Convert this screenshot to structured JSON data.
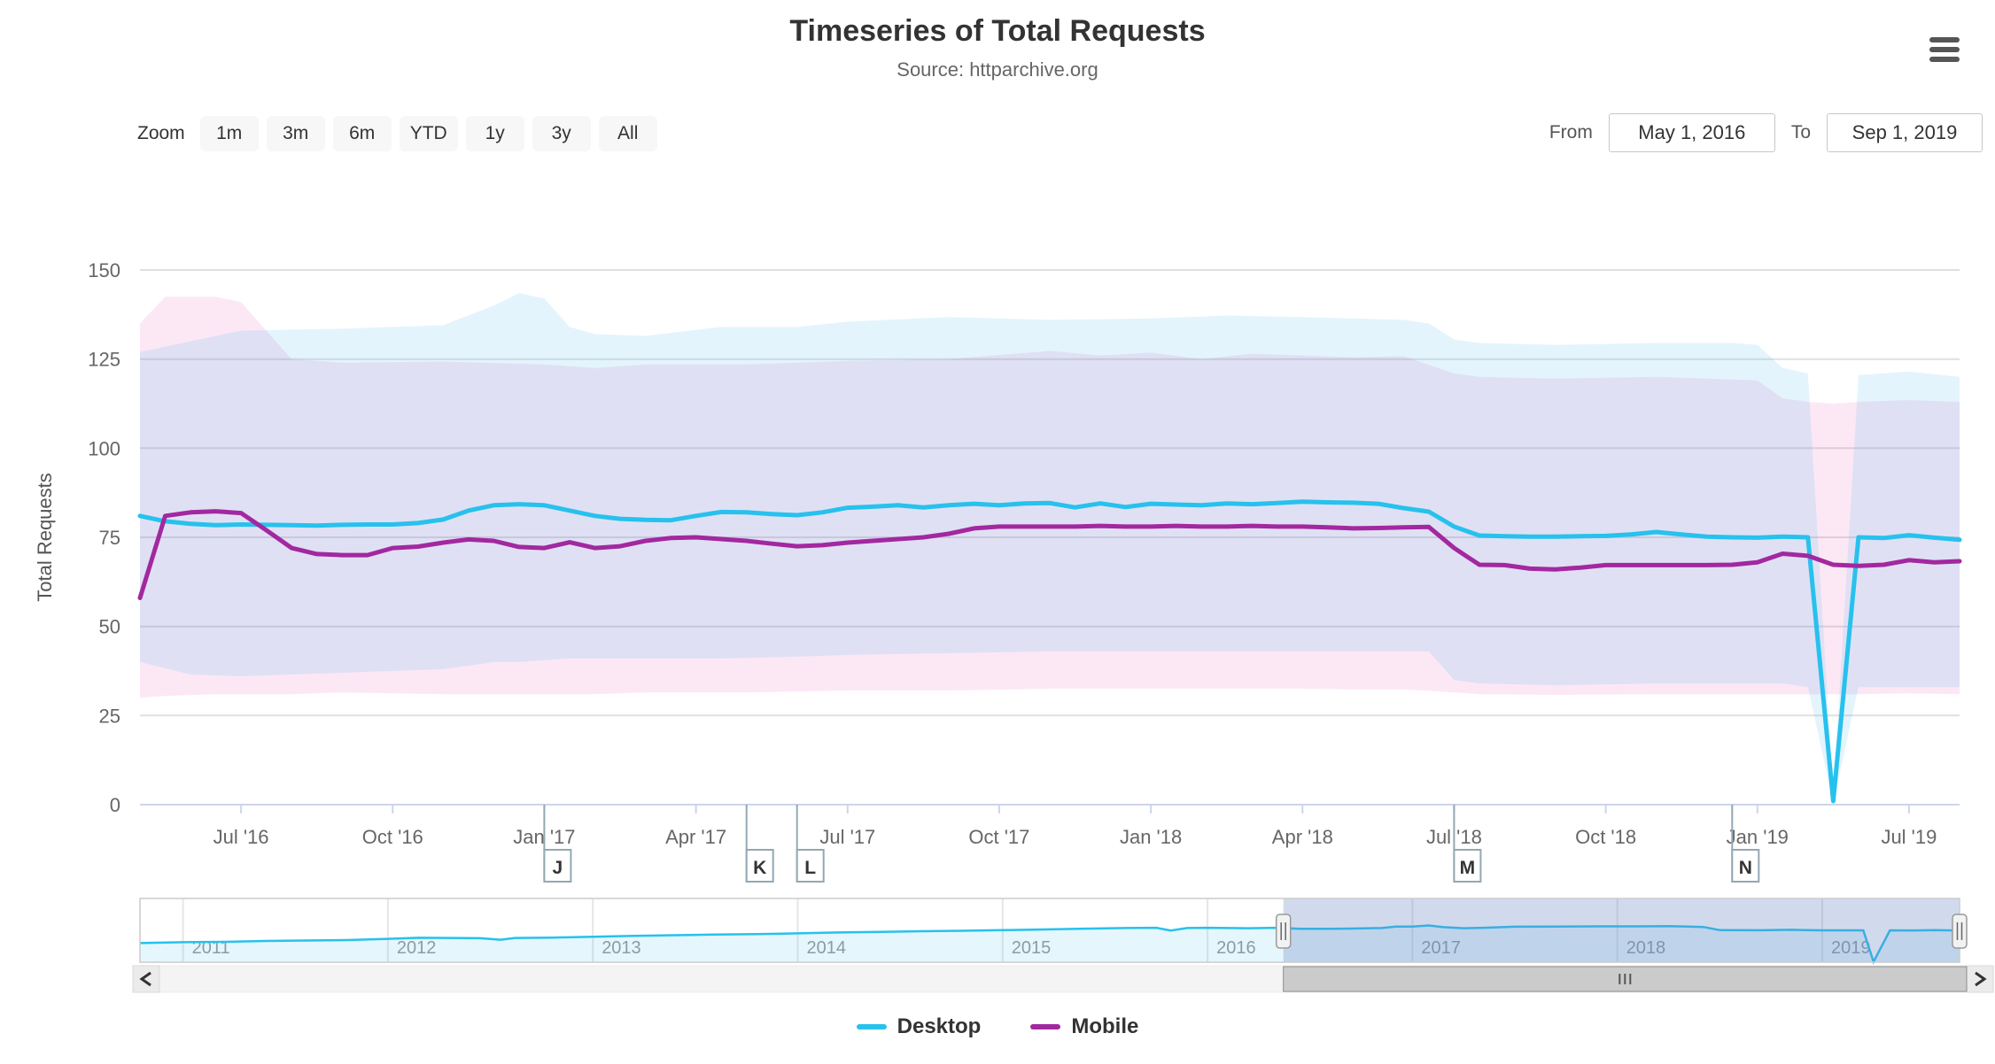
{
  "header": {
    "title": "Timeseries of Total Requests",
    "subtitle": "Source: httparchive.org",
    "menu_icon": "hamburger-icon"
  },
  "toolbar": {
    "zoom_label": "Zoom",
    "buttons": [
      "1m",
      "3m",
      "6m",
      "YTD",
      "1y",
      "3y",
      "All"
    ]
  },
  "range": {
    "from_label": "From",
    "from_value": "May 1, 2016",
    "to_label": "To",
    "to_value": "Sep 1, 2019"
  },
  "legend": [
    {
      "label": "Desktop",
      "color": "#27c1ed"
    },
    {
      "label": "Mobile",
      "color": "#a228a0"
    }
  ],
  "colors": {
    "desktop_line": "#27c1ed",
    "mobile_line": "#a228a0",
    "desktop_band": "rgba(60,180,240,0.14)",
    "mobile_band": "rgba(228,50,160,0.11)",
    "gridline": "#e0e0e0",
    "axis_line": "#ccd6eb",
    "flag_border": "#93a8b3",
    "navigator_mask": "rgba(102,133,194,0.3)"
  },
  "chart_data": {
    "type": "line",
    "title": "Timeseries of Total Requests",
    "xlabel": "",
    "ylabel": "Total Requests",
    "ylim": [
      0,
      150
    ],
    "grid": true,
    "legend_position": "bottom",
    "yticks": [
      0,
      25,
      50,
      75,
      100,
      125,
      150
    ],
    "xticks": [
      [
        "2016-07-01",
        "Jul '16"
      ],
      [
        "2016-10-01",
        "Oct '16"
      ],
      [
        "2017-01-01",
        "Jan '17"
      ],
      [
        "2017-04-01",
        "Apr '17"
      ],
      [
        "2017-07-01",
        "Jul '17"
      ],
      [
        "2017-10-01",
        "Oct '17"
      ],
      [
        "2018-01-01",
        "Jan '18"
      ],
      [
        "2018-04-01",
        "Apr '18"
      ],
      [
        "2018-07-01",
        "Jul '18"
      ],
      [
        "2018-10-01",
        "Oct '18"
      ],
      [
        "2019-01-01",
        "Jan '19"
      ],
      [
        "2019-07-01",
        "Jul '19"
      ]
    ],
    "dates": [
      "2016-05-01",
      "2016-05-15",
      "2016-06-01",
      "2016-06-15",
      "2016-07-01",
      "2016-07-15",
      "2016-08-01",
      "2016-08-15",
      "2016-09-01",
      "2016-09-15",
      "2016-10-01",
      "2016-10-15",
      "2016-11-01",
      "2016-11-15",
      "2016-12-01",
      "2016-12-15",
      "2017-01-01",
      "2017-01-15",
      "2017-02-01",
      "2017-02-15",
      "2017-03-01",
      "2017-03-15",
      "2017-04-01",
      "2017-04-15",
      "2017-05-01",
      "2017-05-15",
      "2017-06-01",
      "2017-06-15",
      "2017-07-01",
      "2017-07-15",
      "2017-08-01",
      "2017-08-15",
      "2017-09-01",
      "2017-09-15",
      "2017-10-01",
      "2017-10-15",
      "2017-11-01",
      "2017-11-15",
      "2017-12-01",
      "2017-12-15",
      "2018-01-01",
      "2018-01-15",
      "2018-02-01",
      "2018-02-15",
      "2018-03-01",
      "2018-03-15",
      "2018-04-01",
      "2018-04-15",
      "2018-05-01",
      "2018-05-15",
      "2018-06-01",
      "2018-06-15",
      "2018-07-01",
      "2018-07-15",
      "2018-08-01",
      "2018-08-15",
      "2018-09-01",
      "2018-09-15",
      "2018-10-01",
      "2018-10-15",
      "2018-11-01",
      "2018-11-15",
      "2018-12-01",
      "2018-12-15",
      "2019-01-01",
      "2019-02-01",
      "2019-03-01",
      "2019-04-01",
      "2019-05-01",
      "2019-06-01",
      "2019-07-01",
      "2019-08-01",
      "2019-09-01"
    ],
    "series": [
      {
        "name": "Desktop",
        "color": "#27c1ed",
        "values": [
          81,
          79.5,
          78.8,
          78.4,
          78.6,
          78.5,
          78.4,
          78.3,
          78.5,
          78.6,
          78.6,
          79,
          80,
          82.5,
          84,
          84.3,
          84,
          82.5,
          81,
          80.2,
          79.9,
          79.8,
          81,
          82.1,
          82,
          81.5,
          81.2,
          82,
          83.3,
          83.6,
          84,
          83.4,
          84,
          84.4,
          84,
          84.5,
          84.6,
          83.4,
          84.5,
          83.5,
          84.4,
          84.2,
          84,
          84.5,
          84.3,
          84.6,
          85,
          84.8,
          84.7,
          84.4,
          83.2,
          82.2,
          78,
          75.5,
          75.3,
          75.2,
          75.2,
          75.3,
          75.4,
          75.8,
          76.5,
          75.8,
          75.2,
          75,
          74.9,
          75.2,
          75,
          1,
          75,
          74.8,
          75.6,
          74.9,
          74.3
        ]
      },
      {
        "name": "Mobile",
        "color": "#a228a0",
        "values": [
          58,
          81,
          82,
          82.3,
          81.8,
          77,
          72,
          70.3,
          70,
          70,
          72,
          72.4,
          73.5,
          74.4,
          74,
          72.3,
          72,
          73.6,
          72,
          72.5,
          74,
          74.8,
          75,
          74.5,
          74,
          73.2,
          72.5,
          72.8,
          73.5,
          74,
          74.5,
          75,
          76,
          77.5,
          78,
          78,
          78,
          78,
          78.2,
          78,
          78,
          78.2,
          78,
          78,
          78.2,
          78,
          78,
          77.8,
          77.5,
          77.6,
          77.8,
          77.9,
          72,
          67.3,
          67.2,
          66.2,
          66,
          66.5,
          67.2,
          67.2,
          67.2,
          67.2,
          67.2,
          67.3,
          68,
          70.4,
          69.8,
          67.3,
          67,
          67.3,
          68.6,
          68,
          68.3
        ]
      }
    ],
    "ranges": [
      {
        "name": "Mobile range",
        "color": "rgba(228,50,160,0.11)",
        "anchors": [
          [
            "2016-05-01",
            30,
            135
          ],
          [
            "2016-05-15",
            30.5,
            142.5
          ],
          [
            "2016-06-15",
            31,
            142.5
          ],
          [
            "2016-07-01",
            31,
            141
          ],
          [
            "2016-08-01",
            31,
            125
          ],
          [
            "2016-09-01",
            31.5,
            124
          ],
          [
            "2016-11-01",
            31,
            124.3
          ],
          [
            "2017-01-01",
            31,
            123.5
          ],
          [
            "2017-02-01",
            31,
            122.5
          ],
          [
            "2017-03-01",
            31.5,
            123.5
          ],
          [
            "2017-05-01",
            31.5,
            123.5
          ],
          [
            "2017-07-01",
            32,
            124.5
          ],
          [
            "2017-09-01",
            32,
            125
          ],
          [
            "2017-11-01",
            32.5,
            127.3
          ],
          [
            "2017-12-01",
            32.5,
            126
          ],
          [
            "2018-01-01",
            32.5,
            126.8
          ],
          [
            "2018-02-01",
            32.5,
            125
          ],
          [
            "2018-03-01",
            32.5,
            126.5
          ],
          [
            "2018-04-01",
            32.5,
            126
          ],
          [
            "2018-05-01",
            32.3,
            125.5
          ],
          [
            "2018-06-01",
            32.3,
            125.8
          ],
          [
            "2018-07-01",
            31.5,
            121
          ],
          [
            "2018-07-15",
            31,
            120
          ],
          [
            "2018-09-01",
            30.8,
            119.5
          ],
          [
            "2018-11-01",
            31,
            120
          ],
          [
            "2019-01-01",
            31,
            119
          ],
          [
            "2019-02-01",
            31,
            114
          ],
          [
            "2019-03-01",
            31,
            113
          ],
          [
            "2019-04-01",
            31,
            112.5
          ],
          [
            "2019-05-01",
            31,
            113
          ],
          [
            "2019-07-01",
            31.2,
            113.5
          ],
          [
            "2019-09-01",
            31,
            113
          ]
        ]
      },
      {
        "name": "Desktop range",
        "color": "rgba(60,180,240,0.14)",
        "anchors": [
          [
            "2016-05-01",
            40,
            127
          ],
          [
            "2016-06-01",
            36.5,
            130
          ],
          [
            "2016-07-01",
            36,
            133
          ],
          [
            "2016-09-01",
            37,
            133.5
          ],
          [
            "2016-11-01",
            38,
            134.5
          ],
          [
            "2016-12-01",
            40,
            140
          ],
          [
            "2016-12-15",
            40,
            143.5
          ],
          [
            "2017-01-01",
            40.5,
            142
          ],
          [
            "2017-01-15",
            41,
            134
          ],
          [
            "2017-02-01",
            41,
            132
          ],
          [
            "2017-03-01",
            41,
            131.5
          ],
          [
            "2017-04-15",
            41,
            134
          ],
          [
            "2017-06-01",
            41.5,
            134
          ],
          [
            "2017-07-01",
            42,
            135.5
          ],
          [
            "2017-09-01",
            42.5,
            136.8
          ],
          [
            "2017-11-01",
            43,
            136
          ],
          [
            "2018-01-01",
            43,
            136.4
          ],
          [
            "2018-02-15",
            43,
            137.2
          ],
          [
            "2018-04-01",
            43,
            136.8
          ],
          [
            "2018-06-01",
            43,
            136
          ],
          [
            "2018-06-15",
            43,
            135
          ],
          [
            "2018-07-01",
            35,
            130.5
          ],
          [
            "2018-07-15",
            34,
            129.5
          ],
          [
            "2018-09-01",
            33.5,
            129
          ],
          [
            "2018-11-01",
            34,
            129.5
          ],
          [
            "2018-12-15",
            34,
            129.5
          ],
          [
            "2019-01-01",
            34,
            129
          ],
          [
            "2019-02-01",
            34,
            122.5
          ],
          [
            "2019-03-01",
            33,
            121
          ],
          [
            "2019-04-01",
            0.5,
            3
          ],
          [
            "2019-05-01",
            33,
            120.5
          ],
          [
            "2019-07-01",
            33,
            121.5
          ],
          [
            "2019-09-01",
            33,
            120
          ]
        ]
      }
    ],
    "flags": [
      {
        "label": "J",
        "date": "2017-01-01"
      },
      {
        "label": "K",
        "date": "2017-05-01"
      },
      {
        "label": "L",
        "date": "2017-06-01"
      },
      {
        "label": "M",
        "date": "2018-07-01"
      },
      {
        "label": "N",
        "date": "2018-12-15"
      }
    ],
    "navigator": {
      "years": [
        "2011",
        "2012",
        "2013",
        "2014",
        "2015",
        "2016",
        "2017",
        "2018",
        "2019"
      ],
      "series_name": "Desktop",
      "points": [
        [
          2010.79,
          45
        ],
        [
          2011.0,
          47
        ],
        [
          2011.2,
          48
        ],
        [
          2011.4,
          50
        ],
        [
          2011.6,
          51
        ],
        [
          2011.8,
          52
        ],
        [
          2012.0,
          55
        ],
        [
          2012.15,
          57.5
        ],
        [
          2012.3,
          57
        ],
        [
          2012.45,
          56.5
        ],
        [
          2012.55,
          53
        ],
        [
          2012.62,
          57
        ],
        [
          2012.8,
          58
        ],
        [
          2013.0,
          60
        ],
        [
          2013.2,
          62
        ],
        [
          2013.4,
          63.5
        ],
        [
          2013.6,
          65
        ],
        [
          2013.8,
          66
        ],
        [
          2014.0,
          68
        ],
        [
          2014.2,
          70
        ],
        [
          2014.4,
          71.5
        ],
        [
          2014.6,
          73
        ],
        [
          2014.8,
          74
        ],
        [
          2015.0,
          75.5
        ],
        [
          2015.2,
          77
        ],
        [
          2015.4,
          79
        ],
        [
          2015.6,
          80.5
        ],
        [
          2015.75,
          81
        ],
        [
          2015.82,
          74.5
        ],
        [
          2015.9,
          80.5
        ],
        [
          2016.0,
          81
        ],
        [
          2016.2,
          80
        ],
        [
          2016.34,
          81
        ],
        [
          2016.45,
          78.6
        ],
        [
          2016.6,
          78.5
        ],
        [
          2016.85,
          80.5
        ],
        [
          2016.92,
          84
        ],
        [
          2017.0,
          84
        ],
        [
          2017.08,
          86.5
        ],
        [
          2017.15,
          82.5
        ],
        [
          2017.25,
          80
        ],
        [
          2017.35,
          81
        ],
        [
          2017.5,
          83.5
        ],
        [
          2017.7,
          84
        ],
        [
          2017.9,
          84.3
        ],
        [
          2018.1,
          84.3
        ],
        [
          2018.25,
          85
        ],
        [
          2018.42,
          83
        ],
        [
          2018.5,
          75.5
        ],
        [
          2018.7,
          75.3
        ],
        [
          2018.85,
          76.3
        ],
        [
          2019.0,
          75
        ],
        [
          2019.1,
          75.1
        ],
        [
          2019.2,
          75
        ],
        [
          2019.25,
          1
        ],
        [
          2019.33,
          75
        ],
        [
          2019.45,
          74.8
        ],
        [
          2019.55,
          75.4
        ],
        [
          2019.67,
          74.3
        ]
      ]
    }
  }
}
